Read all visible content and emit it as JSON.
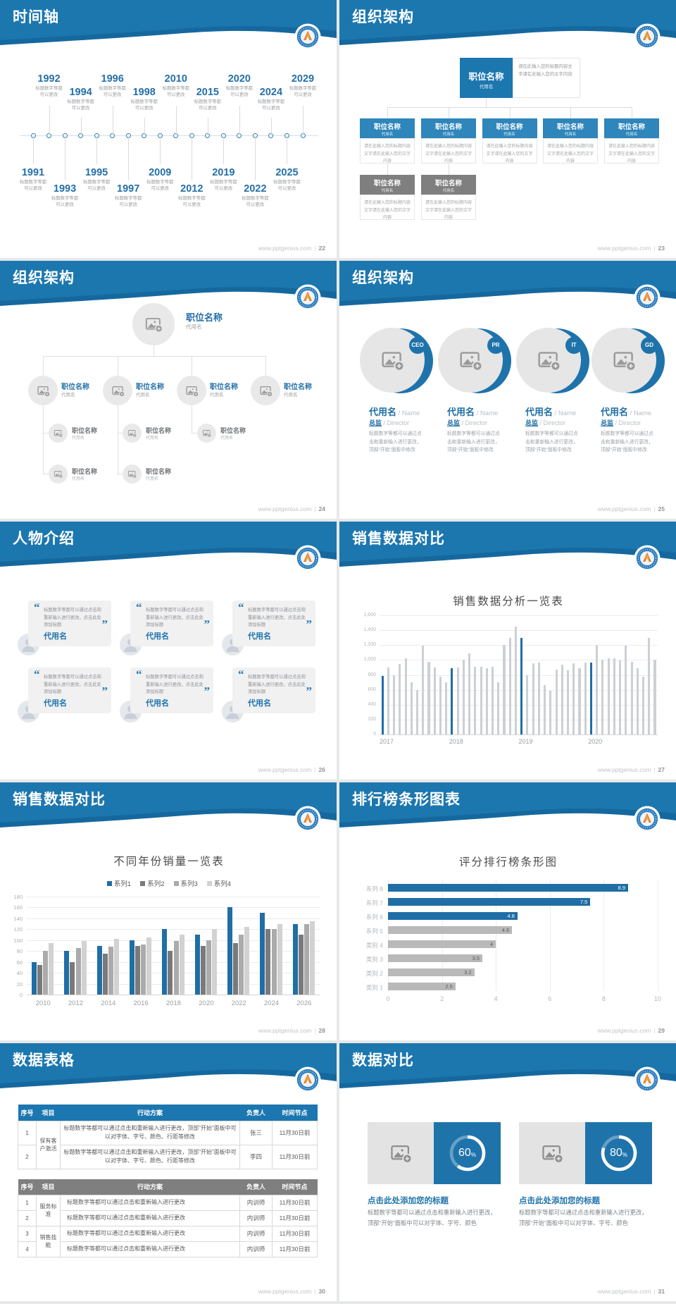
{
  "footer": {
    "site": "www.pptgenius.com",
    "divider": "|"
  },
  "brand_colors": {
    "header_blue": "#1c77af",
    "header_blue_dark": "#15689e",
    "accent_blue": "#1f6ea5",
    "gray_box": "#7f7f7f"
  },
  "slides": [
    {
      "title": "时间轴",
      "page": "22",
      "type": "timeline",
      "timeline": {
        "desc_lines": [
          "标题数字等都",
          "可以更改"
        ],
        "top_years": [
          "1992",
          "1994",
          "1996",
          "1998",
          "2010",
          "2015",
          "2020",
          "2024",
          "2029"
        ],
        "bottom_years": [
          "1991",
          "1993",
          "1995",
          "1997",
          "2009",
          "2012",
          "2019",
          "2022",
          "2025"
        ]
      }
    },
    {
      "title": "组织架构",
      "page": "23",
      "type": "org-boxes",
      "org": {
        "root": {
          "title": "职位名称",
          "sub": "代用名"
        },
        "root_note": "请在此输入您的标题内容文字请在此输入您的文字内容",
        "children": [
          {
            "title": "职位名称",
            "sub": "代用名",
            "note": "请在此输入您的标题内容文字请在此输入您的文字内容"
          },
          {
            "title": "职位名称",
            "sub": "代用名",
            "note": "请在此输入您的标题内容文字请在此输入您的文字内容"
          },
          {
            "title": "职位名称",
            "sub": "代用名",
            "note": "请在此输入您的标题内容文字请在此输入您的文字内容"
          },
          {
            "title": "职位名称",
            "sub": "代用名",
            "note": "请在此输入您的标题内容文字请在此输入您的文字内容"
          },
          {
            "title": "职位名称",
            "sub": "代用名",
            "note": "请在此输入您的标题内容文字请在此输入您的文字内容"
          }
        ],
        "gray_children": [
          {
            "title": "职位名称",
            "sub": "代用名",
            "note": "请在此输入您的标题内容文字请在此输入您的文字内容"
          },
          {
            "title": "职位名称",
            "sub": "代用名",
            "note": "请在此输入您的标题内容文字请在此输入您的文字内容"
          }
        ]
      }
    },
    {
      "title": "组织架构",
      "page": "24",
      "type": "org-circles",
      "org": {
        "root": {
          "title": "职位名称",
          "sub": "代用名"
        },
        "level2": [
          {
            "title": "职位名称",
            "sub": "代用名"
          },
          {
            "title": "职位名称",
            "sub": "代用名"
          },
          {
            "title": "职位名称",
            "sub": "代用名"
          },
          {
            "title": "职位名称",
            "sub": "代用名"
          }
        ],
        "level3": [
          {
            "title": "职位名称",
            "sub": "代用名"
          },
          {
            "title": "职位名称",
            "sub": "代用名"
          },
          {
            "title": "职位名称",
            "sub": "代用名"
          }
        ],
        "level4": [
          {
            "title": "职位名称",
            "sub": "代用名"
          },
          {
            "title": "职位名称",
            "sub": "代用名"
          }
        ]
      }
    },
    {
      "title": "组织架构",
      "page": "25",
      "type": "profiles",
      "profiles": [
        {
          "badge": "CEO",
          "name": "代用名",
          "name_suffix": "/ Name",
          "role": "总监",
          "role_suffix": "/ Director",
          "desc": "标题数字等都可以通过点击和重新输入进行更改，顶部“开始”面板中修改"
        },
        {
          "badge": "PR",
          "name": "代用名",
          "name_suffix": "/ Name",
          "role": "总监",
          "role_suffix": "/ Director",
          "desc": "标题数字等都可以通过点击和重新输入进行更改，顶部“开始”面板中修改"
        },
        {
          "badge": "IT",
          "name": "代用名",
          "name_suffix": "/ Name",
          "role": "总监",
          "role_suffix": "/ Director",
          "desc": "标题数字等都可以通过点击和重新输入进行更改，顶部“开始”面板中修改"
        },
        {
          "badge": "GD",
          "name": "代用名",
          "name_suffix": "/ Name",
          "role": "总监",
          "role_suffix": "/ Director",
          "desc": "标题数字等都可以通过点击和重新输入进行更改，顶部“开始”面板中修改"
        }
      ]
    },
    {
      "title": "人物介绍",
      "page": "26",
      "type": "people",
      "people": [
        {
          "quote": "标题数字等都可以通过点击和重新输入进行更改，点击此处添加标题",
          "name": "代用名"
        },
        {
          "quote": "标题数字等都可以通过点击和重新输入进行更改，点击此处添加标题",
          "name": "代用名"
        },
        {
          "quote": "标题数字等都可以通过点击和重新输入进行更改，点击此处添加标题",
          "name": "代用名"
        },
        {
          "quote": "标题数字等都可以通过点击和重新输入进行更改，点击此处添加标题",
          "name": "代用名"
        },
        {
          "quote": "标题数字等都可以通过点击和重新输入进行更改，点击此处添加标题",
          "name": "代用名"
        },
        {
          "quote": "标题数字等都可以通过点击和重新输入进行更改，点击此处添加标题",
          "name": "代用名"
        }
      ]
    },
    {
      "title": "销售数据对比",
      "page": "27",
      "type": "bar-chart",
      "chart_ref": 0
    },
    {
      "title": "销售数据对比",
      "page": "28",
      "type": "grouped-bar",
      "chart_ref": 1
    },
    {
      "title": "排行榜条形图表",
      "page": "29",
      "type": "hbar",
      "chart_ref": 2
    },
    {
      "title": "数据表格",
      "page": "30",
      "type": "tables",
      "tables": [
        {
          "theme": "#1c77b0",
          "headers": [
            "序号",
            "项目",
            "行动方案",
            "负责人",
            "时间节点"
          ],
          "rows": [
            [
              "1",
              "保有客户激活",
              "标题数字等都可以通过点击和重新输入进行更改，顶部“开始”面板中可以对字体、字号、颜色、行距等修改",
              "张三",
              "11月30日前"
            ],
            [
              "2",
              null,
              "标题数字等都可以通过点击和重新输入进行更改，顶部“开始”面板中可以对字体、字号、颜色、行距等修改",
              "李四",
              "11月30日前"
            ]
          ]
        },
        {
          "theme": "#7f7f7f",
          "headers": [
            "序号",
            "项目",
            "行动方案",
            "负责人",
            "时间节点"
          ],
          "rows": [
            [
              "1",
              "服务标准",
              "标题数字等都可以通过点击和重新输入进行更改",
              "内训师",
              "11月30日前"
            ],
            [
              "2",
              null,
              "标题数字等都可以通过点击和重新输入进行更改",
              "内训师",
              "11月30日前"
            ],
            [
              "3",
              "销售技能",
              "标题数字等都可以通过点击和重新输入进行更改",
              "内训师",
              "11月30日前"
            ],
            [
              "4",
              null,
              "标题数字等都可以通过点击和重新输入进行更改",
              "内训师",
              "11月30日前"
            ]
          ]
        }
      ]
    },
    {
      "title": "数据对比",
      "page": "31",
      "type": "compare",
      "compare": [
        {
          "percent": "60",
          "unit": "%",
          "title": "点击此处添加您的标题",
          "desc": "标题数字等都可以通过点击和重新输入进行更改，顶部“开始”面板中可以对字体、字号、颜色"
        },
        {
          "percent": "80",
          "unit": "%",
          "title": "点击此处添加您的标题",
          "desc": "标题数字等都可以通过点击和重新输入进行更改，顶部“开始”面板中可以对字体、字号、颜色"
        }
      ]
    }
  ],
  "chart_data": [
    {
      "type": "bar",
      "title": "销售数据分析一览表",
      "ylim": [
        0,
        1600
      ],
      "ytick_step": 200,
      "ytick_labels": [
        "0",
        "200",
        "400",
        "600",
        "800",
        "1,000",
        "1,200",
        "1,400",
        "1,600"
      ],
      "categories": [
        "2017",
        "2018",
        "2019",
        "2020"
      ],
      "group_values": [
        [
          790,
          900,
          800,
          950,
          1020,
          700,
          600,
          1190,
          980,
          900,
          780,
          700
        ],
        [
          890,
          900,
          1000,
          1090,
          910,
          910,
          890,
          910,
          700,
          1200,
          1300,
          1450
        ],
        [
          1300,
          800,
          960,
          970,
          660,
          590,
          870,
          940,
          860,
          960,
          890,
          970
        ],
        [
          970,
          1200,
          1000,
          1020,
          1020,
          990,
          1190,
          980,
          890,
          780,
          1300,
          1000
        ]
      ],
      "highlight_first_bar": true,
      "highlight_color": "#1f6ea5",
      "bar_color": "#ccd0d4",
      "grid": true
    },
    {
      "type": "bar",
      "subtype": "grouped",
      "title": "不同年份销量一览表",
      "ylim": [
        0,
        180
      ],
      "ytick_step": 20,
      "categories": [
        "2010",
        "2012",
        "2014",
        "2016",
        "2018",
        "2020",
        "2022",
        "2024",
        "2026"
      ],
      "series": [
        {
          "name": "系列1",
          "color": "#1f6ea5",
          "values": [
            60,
            80,
            90,
            100,
            120,
            110,
            160,
            150,
            130
          ]
        },
        {
          "name": "系列2",
          "color": "#7a7a7a",
          "values": [
            55,
            60,
            75,
            90,
            80,
            90,
            95,
            120,
            110
          ]
        },
        {
          "name": "系列3",
          "color": "#ababab",
          "values": [
            80,
            85,
            88,
            92,
            98,
            100,
            110,
            120,
            130
          ]
        },
        {
          "name": "系列4",
          "color": "#d2d2d2",
          "values": [
            95,
            98,
            102,
            105,
            110,
            120,
            125,
            130,
            135
          ]
        }
      ],
      "legend_position": "top",
      "grid": true
    },
    {
      "type": "bar",
      "subtype": "horizontal",
      "title": "评分排行榜条形图",
      "xlim": [
        0,
        10
      ],
      "xticks": [
        0,
        2,
        4,
        6,
        8,
        10
      ],
      "categories": [
        "系列 8",
        "系列 7",
        "系列 6",
        "系列 5",
        "类别 4",
        "类别 3",
        "类别 2",
        "类别 1"
      ],
      "values": [
        8.9,
        7.5,
        4.8,
        4.6,
        4,
        3.5,
        3.2,
        2.5
      ],
      "value_labels": [
        "8.9",
        "7.5",
        "4.8",
        "4.6",
        "4",
        "3.5",
        "3.2",
        "2.5"
      ],
      "bar_colors": [
        "#1f6ea5",
        "#1f6ea5",
        "#1f6ea5",
        "#b9b9b9",
        "#b9b9b9",
        "#b9b9b9",
        "#b9b9b9",
        "#b9b9b9"
      ],
      "grid": true
    },
    {
      "type": "pie",
      "subtype": "donut",
      "title": "数据对比 60%",
      "values": [
        60,
        40
      ],
      "percent": 60
    },
    {
      "type": "pie",
      "subtype": "donut",
      "title": "数据对比 80%",
      "values": [
        80,
        20
      ],
      "percent": 80
    }
  ]
}
